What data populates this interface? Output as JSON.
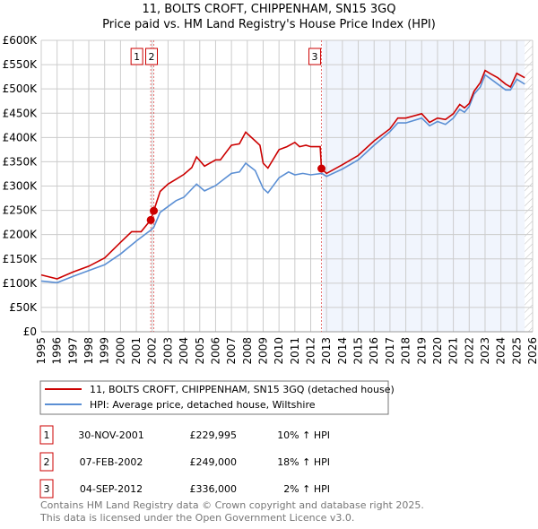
{
  "chart_data": {
    "type": "line",
    "title": "11, BOLTS CROFT, CHIPPENHAM, SN15 3GQ",
    "subtitle": "Price paid vs. HM Land Registry's House Price Index (HPI)",
    "xlim": [
      1995,
      2026
    ],
    "ylim": [
      0,
      600000
    ],
    "grid": true,
    "y_ticks": [
      {
        "v": 0,
        "label": "£0"
      },
      {
        "v": 50000,
        "label": "£50K"
      },
      {
        "v": 100000,
        "label": "£100K"
      },
      {
        "v": 150000,
        "label": "£150K"
      },
      {
        "v": 200000,
        "label": "£200K"
      },
      {
        "v": 250000,
        "label": "£250K"
      },
      {
        "v": 300000,
        "label": "£300K"
      },
      {
        "v": 350000,
        "label": "£350K"
      },
      {
        "v": 400000,
        "label": "£400K"
      },
      {
        "v": 450000,
        "label": "£450K"
      },
      {
        "v": 500000,
        "label": "£500K"
      },
      {
        "v": 550000,
        "label": "£550K"
      },
      {
        "v": 600000,
        "label": "£600K"
      }
    ],
    "x_ticks": [
      "1995",
      "1996",
      "1997",
      "1998",
      "1999",
      "2000",
      "2001",
      "2002",
      "2003",
      "2004",
      "2005",
      "2006",
      "2007",
      "2008",
      "2009",
      "2010",
      "2011",
      "2012",
      "2013",
      "2014",
      "2015",
      "2016",
      "2017",
      "2018",
      "2019",
      "2020",
      "2021",
      "2022",
      "2023",
      "2024",
      "2025",
      "2026"
    ],
    "shaded_from": 2012.75,
    "hatched_from": 2025.5,
    "series": [
      {
        "name": "11, BOLTS CROFT, CHIPPENHAM, SN15 3GQ (detached house)",
        "color": "#cc0000",
        "x": [
          1995,
          1996,
          1997,
          1998,
          1999,
          2000,
          2000.7,
          2001.3,
          2001.9,
          2002.1,
          2002.5,
          2003,
          2003.5,
          2004,
          2004.5,
          2004.8,
          2005.3,
          2006,
          2006.3,
          2007,
          2007.5,
          2007.9,
          2008.5,
          2008.8,
          2009,
          2009.3,
          2010,
          2010.5,
          2011,
          2011.3,
          2011.7,
          2012,
          2012.6,
          2012.68,
          2013,
          2014,
          2015,
          2016,
          2017,
          2017.5,
          2018,
          2019,
          2019.5,
          2020,
          2020.5,
          2021,
          2021.4,
          2021.7,
          2022,
          2022.3,
          2022.7,
          2023,
          2023.3,
          2023.8,
          2024.3,
          2024.6,
          2025,
          2025.5
        ],
        "y": [
          117000,
          109000,
          123000,
          135000,
          152000,
          184000,
          206000,
          206000,
          230000,
          249000,
          289000,
          304000,
          314000,
          324000,
          338000,
          360000,
          341000,
          354000,
          354000,
          384000,
          387000,
          411000,
          393000,
          384000,
          347000,
          337000,
          375000,
          381000,
          390000,
          381000,
          384000,
          381000,
          381000,
          336000,
          326000,
          344000,
          363000,
          393000,
          418000,
          440000,
          440000,
          449000,
          431000,
          440000,
          437000,
          449000,
          468000,
          461000,
          470000,
          495000,
          513000,
          538000,
          532000,
          523000,
          510000,
          504000,
          532000,
          523000
        ]
      },
      {
        "name": "HPI: Average price, detached house, Wiltshire",
        "color": "#5b8fd4",
        "x": [
          1995,
          1996,
          1997,
          1998,
          1999,
          2000,
          2001,
          2001.9,
          2002.1,
          2002.5,
          2003.5,
          2004,
          2004.8,
          2005.3,
          2006,
          2007,
          2007.5,
          2007.9,
          2008.5,
          2009,
          2009.3,
          2010,
          2010.6,
          2011,
          2011.5,
          2012,
          2012.7,
          2013,
          2014,
          2015,
          2016,
          2017,
          2017.5,
          2018,
          2019,
          2019.5,
          2020,
          2020.5,
          2021,
          2021.4,
          2021.7,
          2022,
          2022.3,
          2022.7,
          2023,
          2023.3,
          2023.8,
          2024.3,
          2024.6,
          2025,
          2025.5
        ],
        "y": [
          104500,
          101000,
          114000,
          126000,
          138000,
          160000,
          187000,
          209000,
          215000,
          246000,
          270000,
          277000,
          304000,
          290000,
          301000,
          326000,
          329000,
          347000,
          332000,
          295000,
          286000,
          317000,
          329000,
          323000,
          326000,
          323000,
          326000,
          320000,
          335000,
          354000,
          384000,
          412000,
          430000,
          430000,
          440000,
          424000,
          433000,
          427000,
          440000,
          458000,
          452000,
          464000,
          489000,
          504000,
          529000,
          522000,
          510000,
          498000,
          498000,
          520000,
          510000
        ]
      }
    ],
    "sales": [
      {
        "id": "1",
        "date": "30-NOV-2001",
        "x": 2001.91,
        "price": 229995,
        "price_label": "£229,995",
        "hpi": "10% ↑ HPI"
      },
      {
        "id": "2",
        "date": "07-FEB-2002",
        "x": 2002.1,
        "price": 249000,
        "price_label": "£249,000",
        "hpi": "18% ↑ HPI"
      },
      {
        "id": "3",
        "date": "04-SEP-2012",
        "x": 2012.68,
        "price": 336000,
        "price_label": "£336,000",
        "hpi": "2% ↑ HPI"
      }
    ]
  },
  "footer": {
    "line1": "Contains HM Land Registry data © Crown copyright and database right 2025.",
    "line2": "This data is licensed under the Open Government Licence v3.0."
  }
}
